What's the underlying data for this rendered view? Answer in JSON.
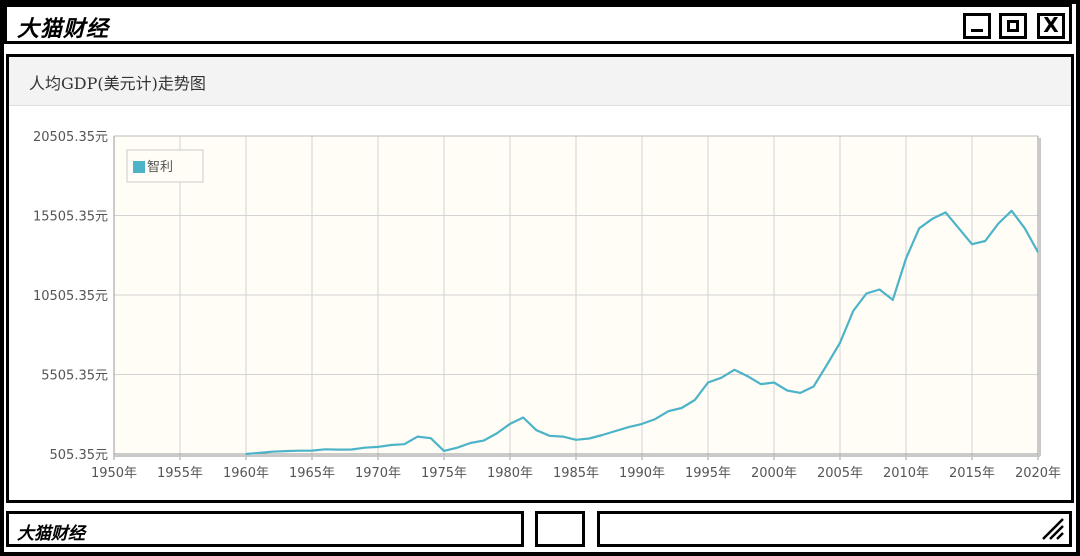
{
  "window": {
    "title": "大猫财经",
    "footer_title": "大猫财经",
    "buttons": {
      "minimize": "_",
      "maximize": "□",
      "close": "X"
    }
  },
  "chart_data": {
    "type": "line",
    "title": "人均GDP(美元计)走势图",
    "legend": {
      "entries": [
        "智利"
      ],
      "placement": "top-left"
    },
    "xlim": [
      1950,
      2020
    ],
    "ylim": [
      505.35,
      20505.35
    ],
    "grid": true,
    "x_ticks": [
      "1950年",
      "1955年",
      "1960年",
      "1965年",
      "1970年",
      "1975年",
      "1980年",
      "1985年",
      "1990年",
      "1995年",
      "2000年",
      "2005年",
      "2010年",
      "2015年",
      "2020年"
    ],
    "y_ticks": [
      "505.35元",
      "5505.35元",
      "10505.35元",
      "15505.35元",
      "20505.35元"
    ],
    "y_tick_values": [
      505.35,
      5505.35,
      10505.35,
      15505.35,
      20505.35
    ],
    "series": [
      {
        "name": "智利",
        "color": "#4cb3c9",
        "x": [
          1960,
          1961,
          1962,
          1963,
          1964,
          1965,
          1966,
          1967,
          1968,
          1969,
          1970,
          1971,
          1972,
          1973,
          1974,
          1975,
          1976,
          1977,
          1978,
          1979,
          1980,
          1981,
          1982,
          1983,
          1984,
          1985,
          1986,
          1987,
          1988,
          1989,
          1990,
          1991,
          1992,
          1993,
          1994,
          1995,
          1996,
          1997,
          1998,
          1999,
          2000,
          2001,
          2002,
          2003,
          2004,
          2005,
          2006,
          2007,
          2008,
          2009,
          2010,
          2011,
          2012,
          2013,
          2014,
          2015,
          2016,
          2017,
          2018,
          2019,
          2020
        ],
        "y": [
          505,
          575,
          650,
          690,
          710,
          720,
          800,
          780,
          790,
          900,
          950,
          1070,
          1120,
          1600,
          1500,
          700,
          900,
          1200,
          1350,
          1800,
          2400,
          2800,
          2000,
          1650,
          1600,
          1400,
          1480,
          1700,
          1950,
          2200,
          2400,
          2700,
          3200,
          3400,
          3900,
          5000,
          5300,
          5800,
          5400,
          4900,
          5000,
          4500,
          4350,
          4750,
          6100,
          7500,
          9500,
          10600,
          10850,
          10200,
          12800,
          14700,
          15300,
          15700,
          14700,
          13700,
          13900,
          15000,
          15800,
          14700,
          13200
        ]
      }
    ]
  }
}
